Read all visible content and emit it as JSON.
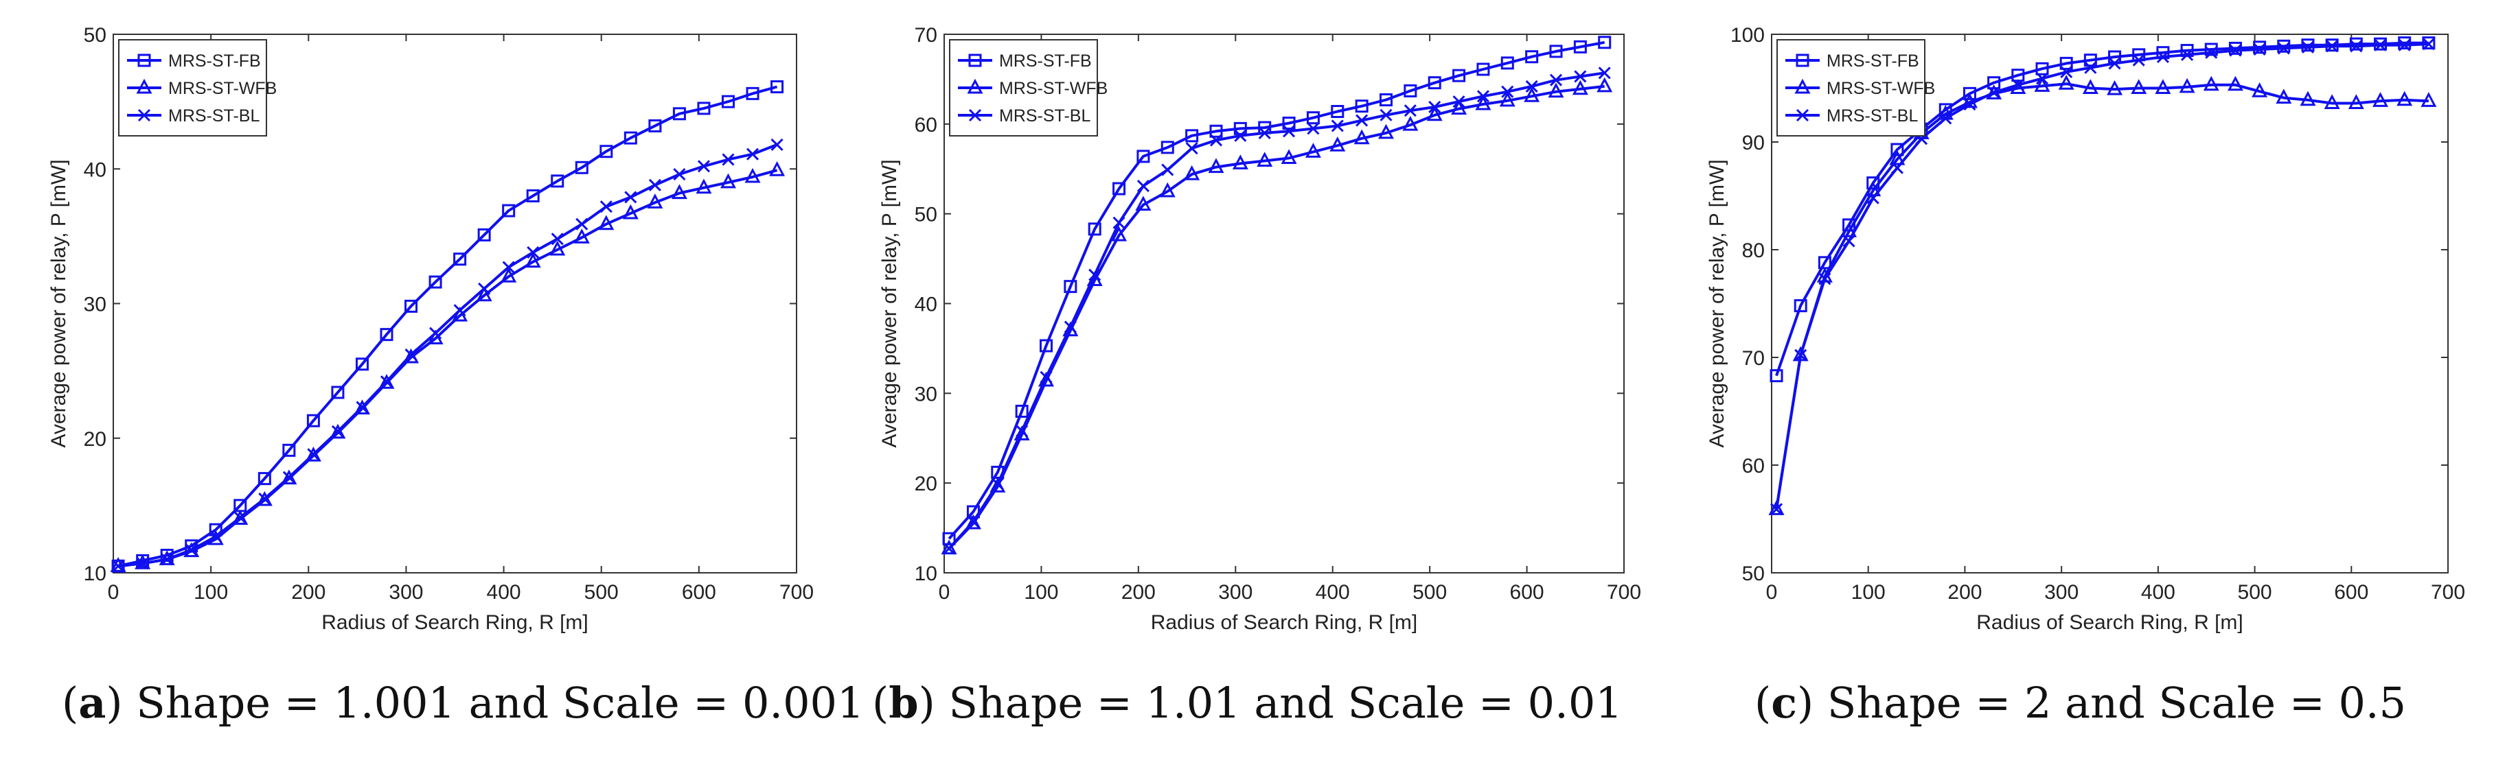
{
  "chart_data": [
    {
      "type": "line",
      "caption": {
        "letter": "a",
        "text": "Shape = 1.001 and Scale = 0.001"
      },
      "xlabel": "Radius of Search Ring, R [m]",
      "ylabel": "Average power of relay, P [mW]",
      "xlim": [
        0,
        700
      ],
      "ylim": [
        10,
        50
      ],
      "xticks": [
        0,
        100,
        200,
        300,
        400,
        500,
        600,
        700
      ],
      "yticks": [
        10,
        20,
        30,
        40,
        50
      ],
      "legend_position": "top-left",
      "x": [
        5,
        30,
        55,
        80,
        105,
        130,
        155,
        180,
        205,
        230,
        255,
        280,
        305,
        330,
        355,
        380,
        405,
        430,
        455,
        480,
        505,
        530,
        555,
        580,
        605,
        630,
        655,
        680
      ],
      "series": [
        {
          "name": "MRS-ST-FB",
          "marker": "square",
          "values": [
            10.5,
            10.9,
            11.3,
            12.0,
            13.2,
            15.0,
            17.0,
            19.1,
            21.3,
            23.4,
            25.5,
            27.7,
            29.8,
            31.6,
            33.3,
            35.1,
            36.9,
            38.0,
            39.1,
            40.1,
            41.3,
            42.3,
            43.2,
            44.1,
            44.5,
            45.0,
            45.6,
            46.1
          ]
        },
        {
          "name": "MRS-ST-WFB",
          "marker": "triangle",
          "values": [
            10.5,
            10.7,
            11.0,
            11.6,
            12.5,
            14.0,
            15.4,
            17.0,
            18.7,
            20.4,
            22.2,
            24.1,
            26.0,
            27.4,
            29.1,
            30.6,
            32.0,
            33.1,
            34.0,
            34.9,
            35.9,
            36.7,
            37.5,
            38.2,
            38.6,
            39.0,
            39.4,
            39.9
          ]
        },
        {
          "name": "MRS-ST-BL",
          "marker": "x",
          "values": [
            10.5,
            10.7,
            11.0,
            11.7,
            12.7,
            14.1,
            15.5,
            17.1,
            18.8,
            20.5,
            22.3,
            24.2,
            26.2,
            27.8,
            29.5,
            31.1,
            32.7,
            33.8,
            34.8,
            35.9,
            37.2,
            37.9,
            38.8,
            39.6,
            40.2,
            40.7,
            41.1,
            41.8
          ]
        }
      ]
    },
    {
      "type": "line",
      "caption": {
        "letter": "b",
        "text": "Shape = 1.01 and Scale = 0.01"
      },
      "xlabel": "Radius of Search Ring, R [m]",
      "ylabel": "Average power of relay, P [mW]",
      "xlim": [
        0,
        700
      ],
      "ylim": [
        10,
        70
      ],
      "xticks": [
        0,
        100,
        200,
        300,
        400,
        500,
        600,
        700
      ],
      "yticks": [
        10,
        20,
        30,
        40,
        50,
        60,
        70
      ],
      "legend_position": "top-left",
      "x": [
        5,
        30,
        55,
        80,
        105,
        130,
        155,
        180,
        205,
        230,
        255,
        280,
        305,
        330,
        355,
        380,
        405,
        430,
        455,
        480,
        505,
        530,
        555,
        580,
        605,
        630,
        655,
        680
      ],
      "series": [
        {
          "name": "MRS-ST-FB",
          "marker": "square",
          "values": [
            13.8,
            16.8,
            21.2,
            28.0,
            35.3,
            41.9,
            48.3,
            52.8,
            56.4,
            57.4,
            58.7,
            59.2,
            59.5,
            59.6,
            60.1,
            60.7,
            61.4,
            62.0,
            62.7,
            63.7,
            64.6,
            65.4,
            66.1,
            66.8,
            67.5,
            68.1,
            68.6,
            69.1
          ]
        },
        {
          "name": "MRS-ST-WFB",
          "marker": "triangle",
          "values": [
            12.7,
            15.5,
            19.6,
            25.4,
            31.4,
            37.0,
            42.6,
            47.6,
            51.0,
            52.5,
            54.4,
            55.2,
            55.6,
            55.9,
            56.2,
            56.9,
            57.6,
            58.4,
            59.0,
            59.9,
            61.0,
            61.7,
            62.2,
            62.6,
            63.1,
            63.6,
            63.9,
            64.2
          ]
        },
        {
          "name": "MRS-ST-BL",
          "marker": "x",
          "values": [
            12.7,
            15.7,
            19.9,
            25.8,
            31.8,
            37.4,
            43.2,
            49.0,
            53.1,
            54.9,
            57.3,
            58.2,
            58.7,
            59.0,
            59.2,
            59.5,
            59.8,
            60.4,
            61.0,
            61.5,
            61.9,
            62.5,
            63.1,
            63.6,
            64.2,
            64.9,
            65.3,
            65.7
          ]
        }
      ]
    },
    {
      "type": "line",
      "caption": {
        "letter": "c",
        "text": "Shape = 2 and Scale = 0.5"
      },
      "xlabel": "Radius of Search Ring, R [m]",
      "ylabel": "Average power of relay, P [mW]",
      "xlim": [
        0,
        700
      ],
      "ylim": [
        50,
        100
      ],
      "xticks": [
        0,
        100,
        200,
        300,
        400,
        500,
        600,
        700
      ],
      "yticks": [
        50,
        60,
        70,
        80,
        90,
        100
      ],
      "legend_position": "top-left",
      "x": [
        5,
        30,
        55,
        80,
        105,
        130,
        155,
        180,
        205,
        230,
        255,
        280,
        305,
        330,
        355,
        380,
        405,
        430,
        455,
        480,
        505,
        530,
        555,
        580,
        605,
        630,
        655,
        680
      ],
      "series": [
        {
          "name": "MRS-ST-FB",
          "marker": "square",
          "values": [
            68.3,
            74.8,
            78.8,
            82.3,
            86.2,
            89.3,
            91.2,
            93.0,
            94.5,
            95.5,
            96.2,
            96.8,
            97.3,
            97.6,
            97.9,
            98.1,
            98.3,
            98.5,
            98.6,
            98.7,
            98.8,
            98.9,
            99.0,
            99.0,
            99.1,
            99.1,
            99.2,
            99.2
          ]
        },
        {
          "name": "MRS-ST-WFB",
          "marker": "triangle",
          "values": [
            55.9,
            70.2,
            77.5,
            81.7,
            85.5,
            88.4,
            90.8,
            92.6,
            93.7,
            94.5,
            95.0,
            95.2,
            95.4,
            95.0,
            94.9,
            95.0,
            95.0,
            95.1,
            95.3,
            95.3,
            94.7,
            94.1,
            93.9,
            93.6,
            93.6,
            93.8,
            93.9,
            93.8
          ]
        },
        {
          "name": "MRS-ST-BL",
          "marker": "x",
          "values": [
            55.9,
            70.2,
            77.3,
            80.8,
            84.8,
            87.6,
            90.3,
            92.2,
            93.5,
            94.6,
            95.3,
            95.9,
            96.5,
            96.9,
            97.3,
            97.6,
            97.9,
            98.1,
            98.3,
            98.5,
            98.6,
            98.7,
            98.8,
            98.9,
            98.9,
            99.0,
            99.0,
            99.1
          ]
        }
      ]
    }
  ]
}
